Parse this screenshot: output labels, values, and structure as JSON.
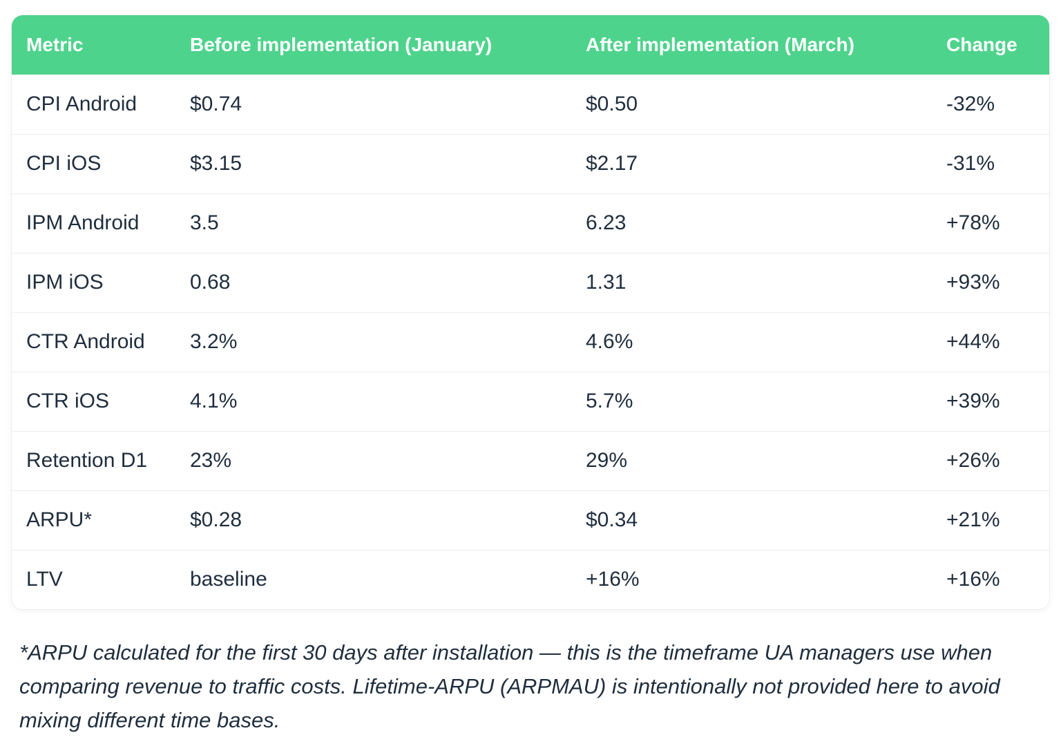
{
  "chart_data": {
    "type": "table",
    "columns": [
      "Metric",
      "Before implementation (January)",
      "After implementation (March)",
      "Change"
    ],
    "rows": [
      {
        "metric": "CPI Android",
        "before": "$0.74",
        "after": "$0.50",
        "change": "-32%"
      },
      {
        "metric": "CPI iOS",
        "before": "$3.15",
        "after": "$2.17",
        "change": "-31%"
      },
      {
        "metric": "IPM Android",
        "before": "3.5",
        "after": "6.23",
        "change": "+78%"
      },
      {
        "metric": "IPM iOS",
        "before": "0.68",
        "after": "1.31",
        "change": "+93%"
      },
      {
        "metric": "CTR Android",
        "before": "3.2%",
        "after": "4.6%",
        "change": "+44%"
      },
      {
        "metric": "CTR iOS",
        "before": "4.1%",
        "after": "5.7%",
        "change": "+39%"
      },
      {
        "metric": "Retention D1",
        "before": "23%",
        "after": "29%",
        "change": "+26%"
      },
      {
        "metric": "ARPU*",
        "before": "$0.28",
        "after": "$0.34",
        "change": "+21%"
      },
      {
        "metric": "LTV",
        "before": "baseline",
        "after": "+16%",
        "change": "+16%"
      }
    ]
  },
  "footnote": "*ARPU calculated for the first 30 days after installation — this is the timeframe UA managers use when comparing revenue to traffic costs. Lifetime-ARPU (ARPMAU) is intentionally not provided here to avoid mixing different time bases.",
  "colors": {
    "header_bg": "#4ed38c",
    "header_text": "#ffffff",
    "body_text": "#1f2d3d",
    "divider": "#ededed",
    "card_bg": "#ffffff"
  }
}
